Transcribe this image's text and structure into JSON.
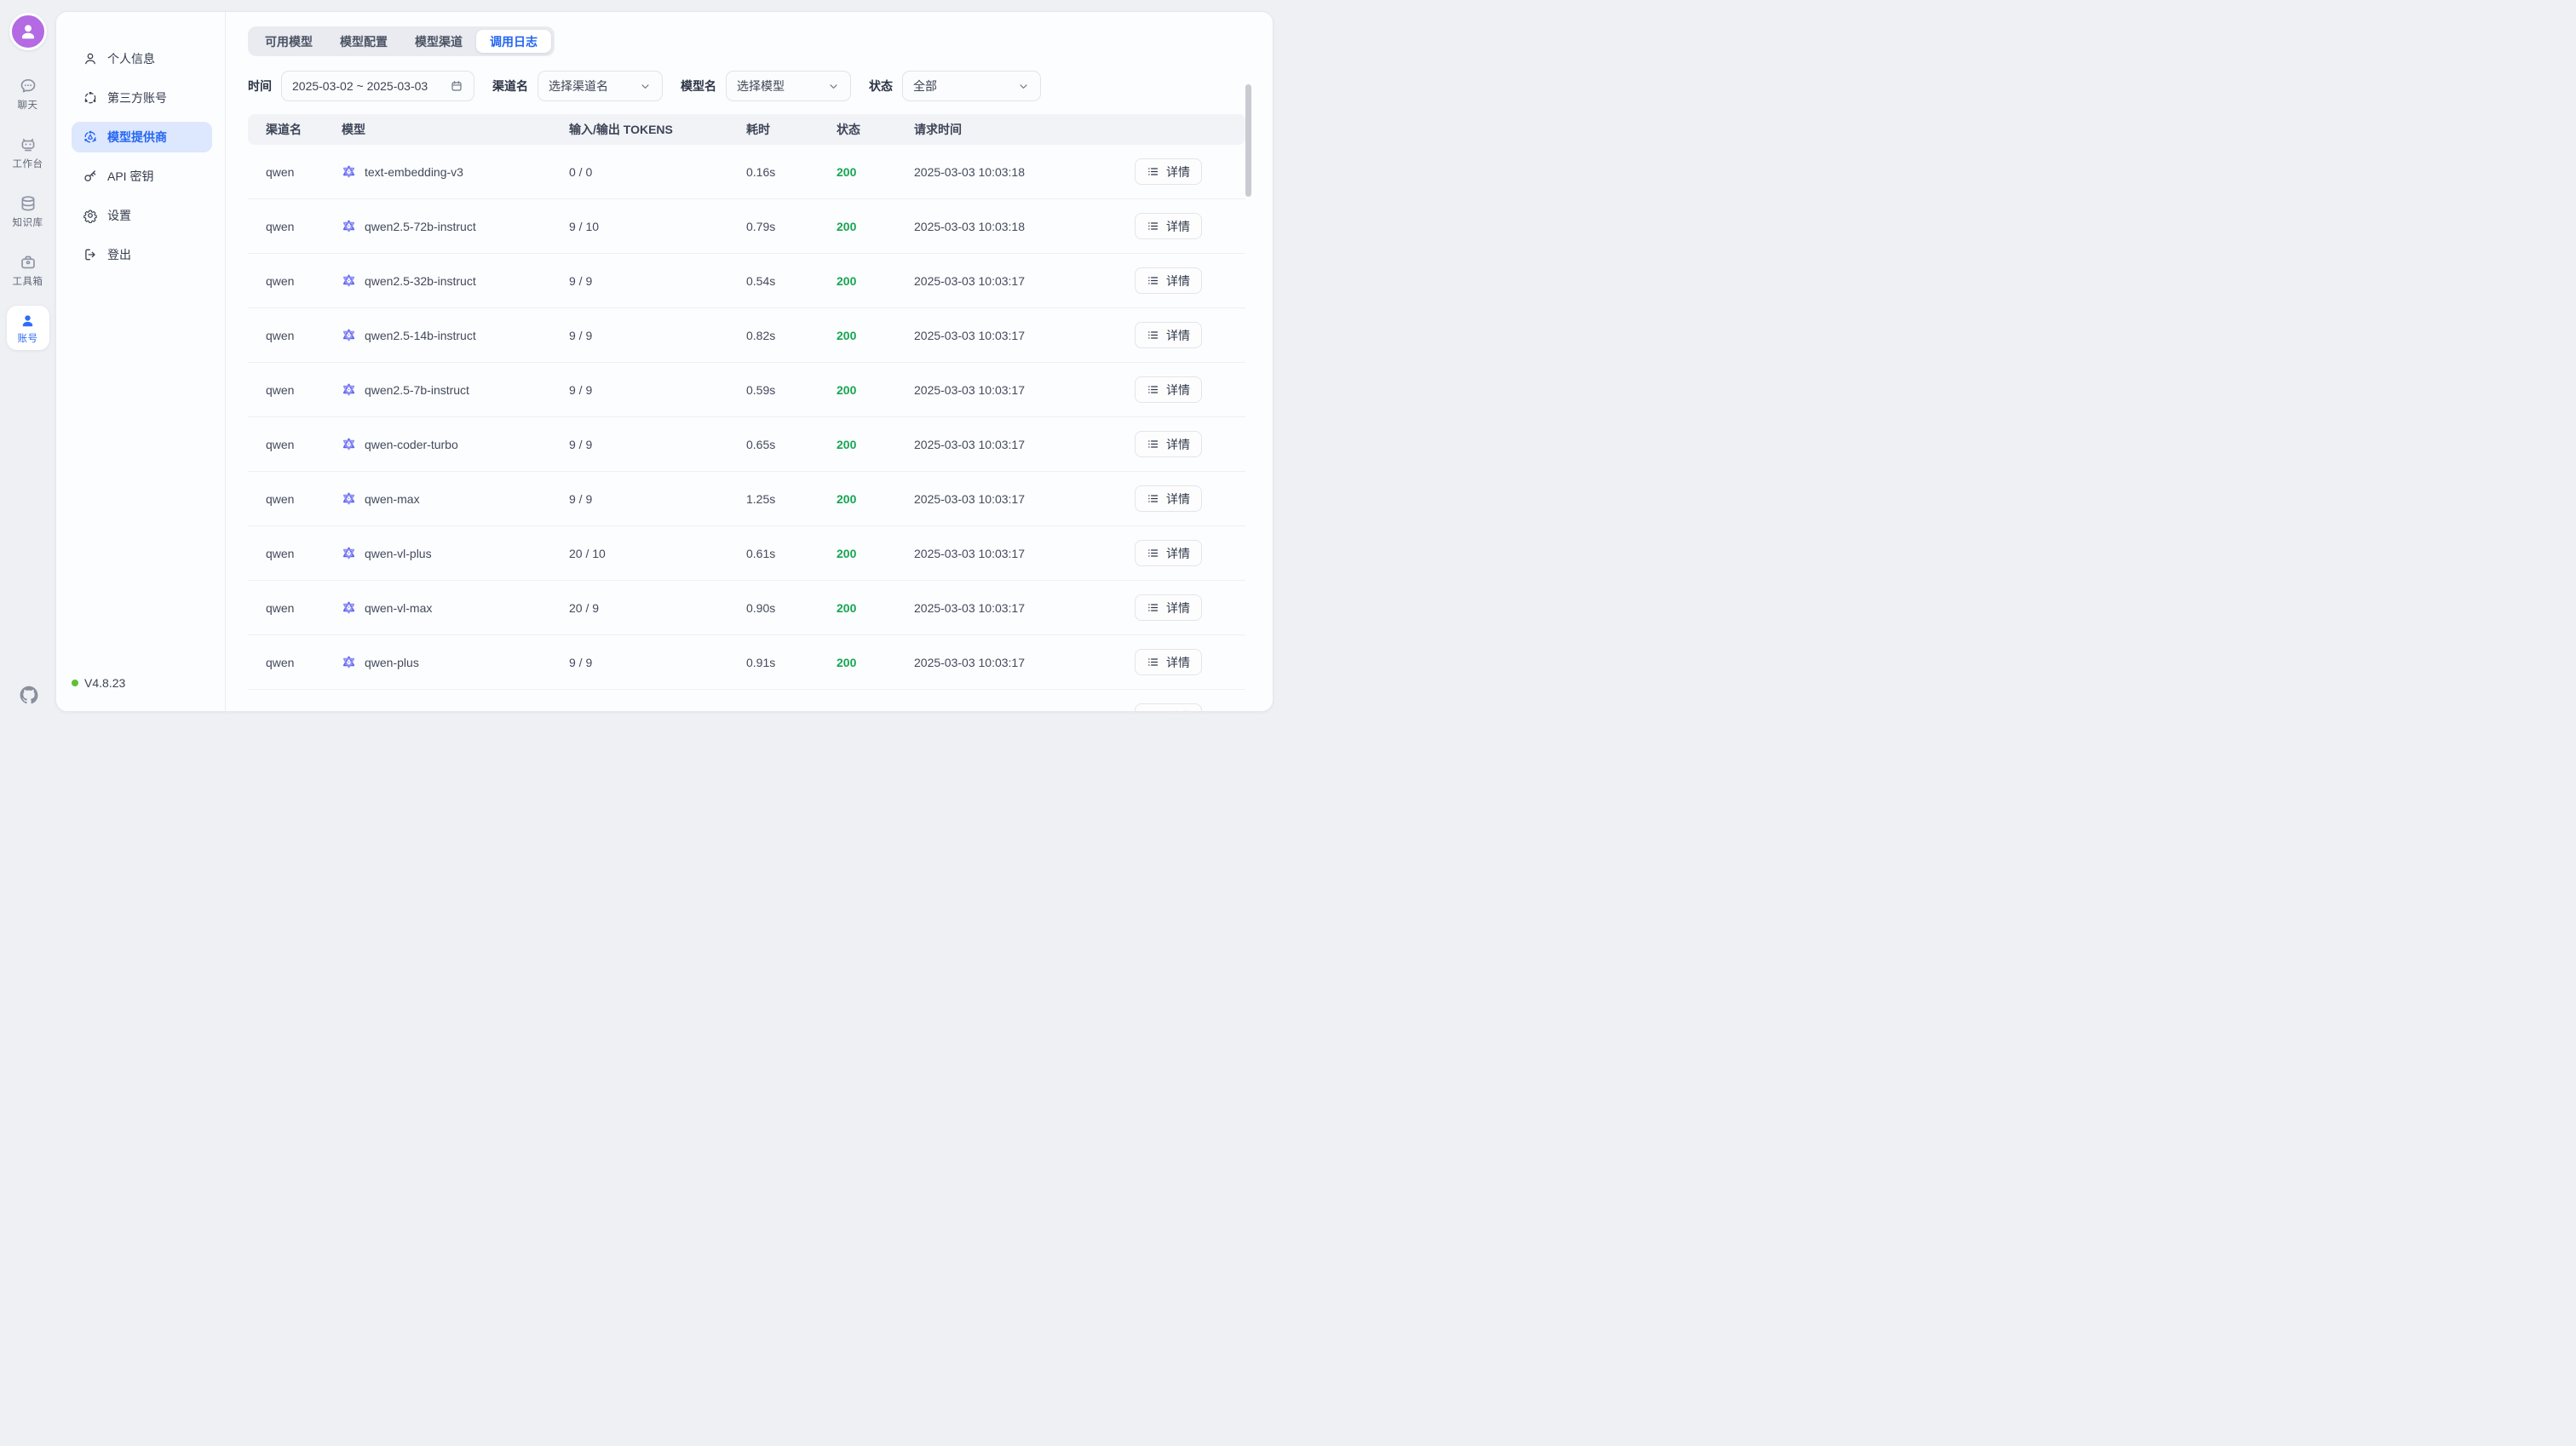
{
  "rail": {
    "items": [
      {
        "label": "聊天",
        "icon": "chat"
      },
      {
        "label": "工作台",
        "icon": "robot"
      },
      {
        "label": "知识库",
        "icon": "database"
      },
      {
        "label": "工具箱",
        "icon": "briefcase"
      }
    ],
    "account_label": "账号"
  },
  "sidebar": {
    "items": [
      {
        "label": "个人信息",
        "icon": "user"
      },
      {
        "label": "第三方账号",
        "icon": "share"
      },
      {
        "label": "模型提供商",
        "icon": "provider",
        "active": true
      },
      {
        "label": "API 密钥",
        "icon": "key"
      },
      {
        "label": "设置",
        "icon": "gear"
      },
      {
        "label": "登出",
        "icon": "logout"
      }
    ],
    "version": "V4.8.23"
  },
  "tabs": {
    "items": [
      {
        "label": "可用模型"
      },
      {
        "label": "模型配置"
      },
      {
        "label": "模型渠道"
      },
      {
        "label": "调用日志",
        "active": true
      }
    ]
  },
  "filters": {
    "time_label": "时间",
    "time_value": "2025-03-02 ~ 2025-03-03",
    "channel_label": "渠道名",
    "channel_value": "选择渠道名",
    "model_label": "模型名",
    "model_value": "选择模型",
    "status_label": "状态",
    "status_value": "全部"
  },
  "table": {
    "headers": [
      "渠道名",
      "模型",
      "输入/输出 TOKENS",
      "耗时",
      "状态",
      "请求时间"
    ],
    "action_label": "详情",
    "rows": [
      {
        "channel": "qwen",
        "model": "text-embedding-v3",
        "tokens": "0 / 0",
        "duration": "0.16s",
        "status": "200",
        "time": "2025-03-03 10:03:18"
      },
      {
        "channel": "qwen",
        "model": "qwen2.5-72b-instruct",
        "tokens": "9 / 10",
        "duration": "0.79s",
        "status": "200",
        "time": "2025-03-03 10:03:18"
      },
      {
        "channel": "qwen",
        "model": "qwen2.5-32b-instruct",
        "tokens": "9 / 9",
        "duration": "0.54s",
        "status": "200",
        "time": "2025-03-03 10:03:17"
      },
      {
        "channel": "qwen",
        "model": "qwen2.5-14b-instruct",
        "tokens": "9 / 9",
        "duration": "0.82s",
        "status": "200",
        "time": "2025-03-03 10:03:17"
      },
      {
        "channel": "qwen",
        "model": "qwen2.5-7b-instruct",
        "tokens": "9 / 9",
        "duration": "0.59s",
        "status": "200",
        "time": "2025-03-03 10:03:17"
      },
      {
        "channel": "qwen",
        "model": "qwen-coder-turbo",
        "tokens": "9 / 9",
        "duration": "0.65s",
        "status": "200",
        "time": "2025-03-03 10:03:17"
      },
      {
        "channel": "qwen",
        "model": "qwen-max",
        "tokens": "9 / 9",
        "duration": "1.25s",
        "status": "200",
        "time": "2025-03-03 10:03:17"
      },
      {
        "channel": "qwen",
        "model": "qwen-vl-plus",
        "tokens": "20 / 10",
        "duration": "0.61s",
        "status": "200",
        "time": "2025-03-03 10:03:17"
      },
      {
        "channel": "qwen",
        "model": "qwen-vl-max",
        "tokens": "20 / 9",
        "duration": "0.90s",
        "status": "200",
        "time": "2025-03-03 10:03:17"
      },
      {
        "channel": "qwen",
        "model": "qwen-plus",
        "tokens": "9 / 9",
        "duration": "0.91s",
        "status": "200",
        "time": "2025-03-03 10:03:17"
      }
    ],
    "has_partial_row": true
  },
  "colors": {
    "accent_blue": "#2466f2",
    "status_green": "#16a551",
    "avatar_purple": "#b36ae2",
    "qwen_indigo": "#6064ee",
    "version_dot_green": "#5bc235"
  }
}
